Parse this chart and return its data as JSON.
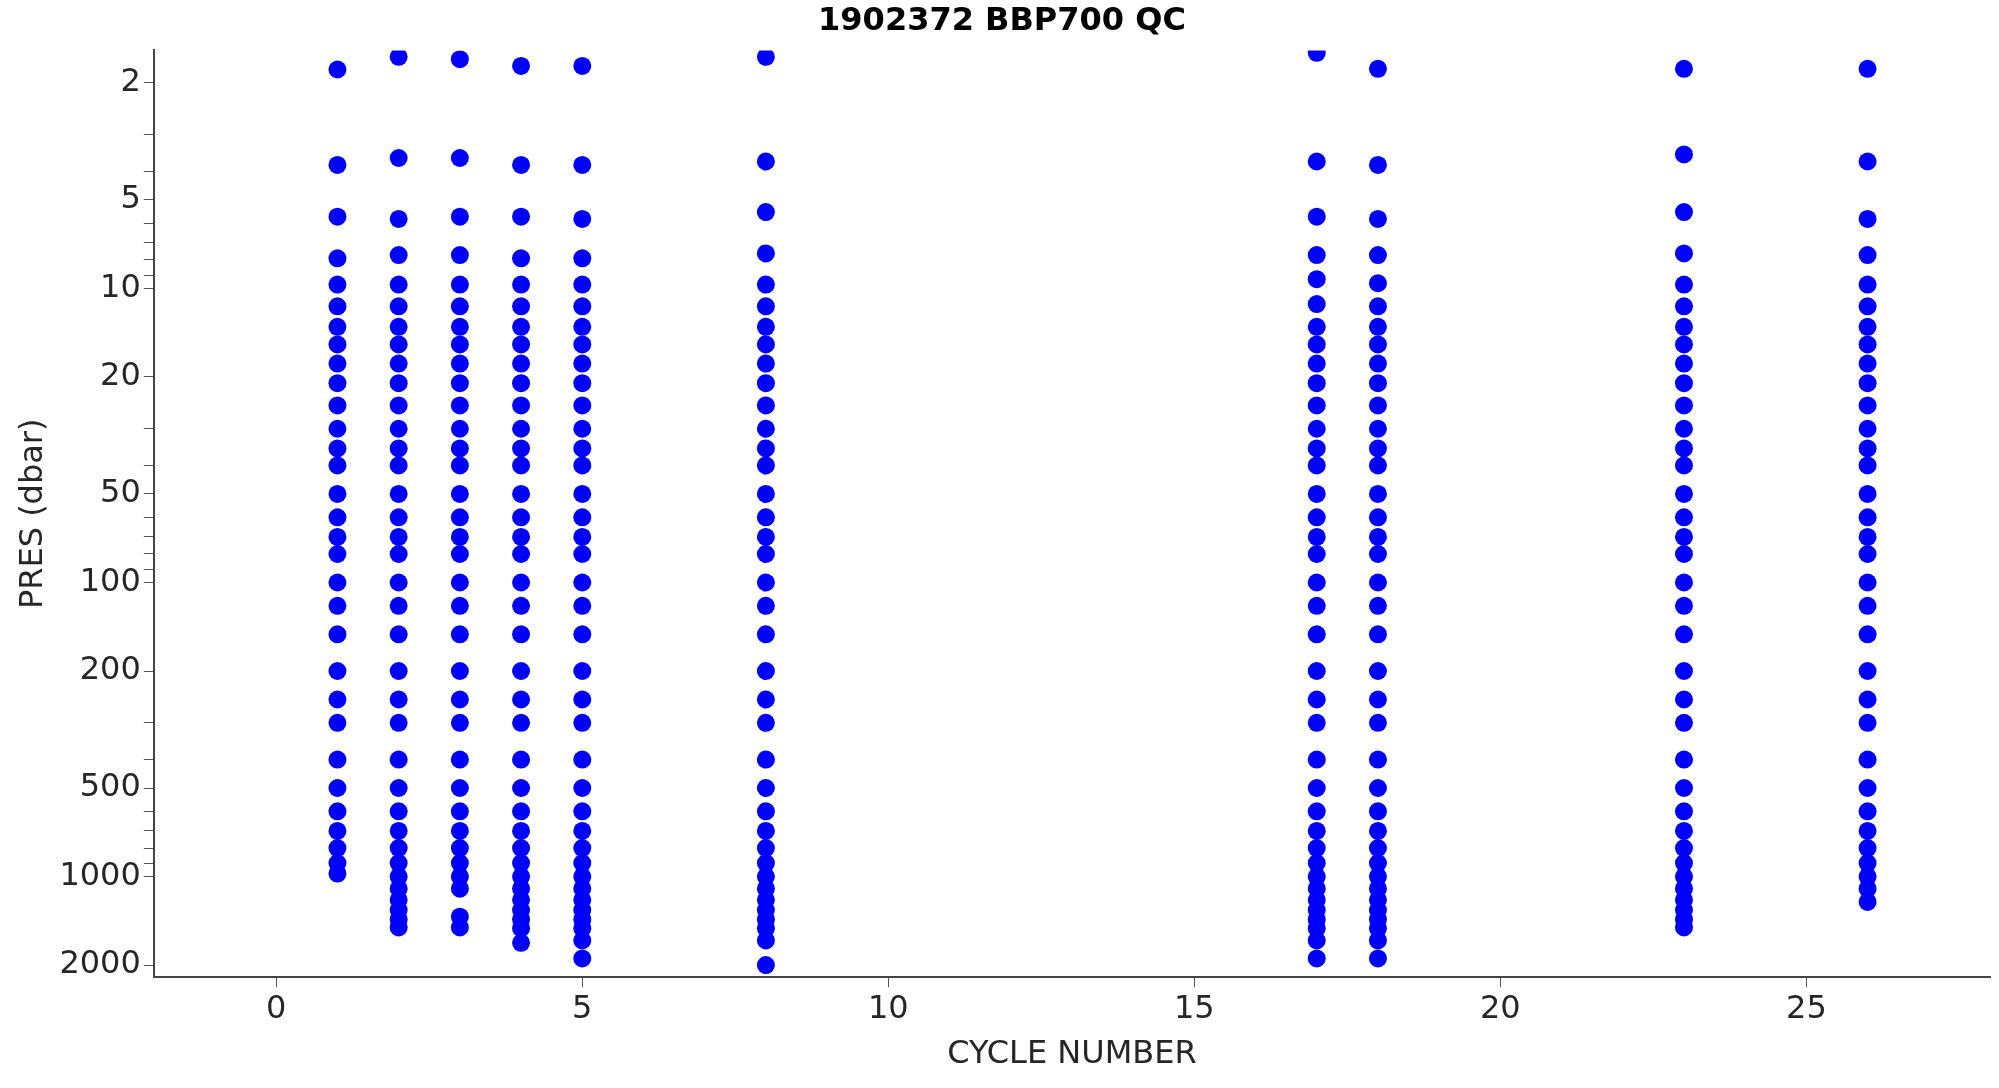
{
  "chart_data": {
    "type": "scatter",
    "title": "1902372 BBP700 QC",
    "xlabel": "CYCLE NUMBER",
    "ylabel": "PRES (dbar)",
    "log": "y",
    "grid": false,
    "marker": "circle",
    "xlim": [
      -2,
      28
    ],
    "xticks": [
      0,
      5,
      10,
      15,
      20,
      25
    ],
    "ylim": [
      2200,
      1.55
    ],
    "yticks": [
      2,
      {
        "value": 3,
        "label": null
      },
      {
        "value": 4,
        "label": null
      },
      5,
      {
        "value": 6,
        "label": null
      },
      {
        "value": 7,
        "label": null
      },
      {
        "value": 8,
        "label": null
      },
      {
        "value": 9,
        "label": null
      },
      10,
      20,
      {
        "value": 30,
        "label": null
      },
      {
        "value": 40,
        "label": null
      },
      50,
      {
        "value": 60,
        "label": null
      },
      {
        "value": 70,
        "label": null
      },
      {
        "value": 80,
        "label": null
      },
      {
        "value": 90,
        "label": null
      },
      100,
      200,
      {
        "value": 300,
        "label": null
      },
      {
        "value": 400,
        "label": null
      },
      500,
      {
        "value": 600,
        "label": null
      },
      {
        "value": 700,
        "label": null
      },
      {
        "value": 800,
        "label": null
      },
      {
        "value": 900,
        "label": null
      },
      1000,
      2000
    ],
    "series": [
      {
        "color": "#0000ff",
        "x": [
          1,
          1,
          1,
          1,
          1,
          1,
          1,
          1,
          1,
          1,
          1,
          1,
          1,
          1,
          1,
          1,
          1,
          1,
          1,
          1,
          1,
          1,
          1,
          1,
          1,
          1,
          1,
          1,
          1,
          1,
          1
        ],
        "values": [
          1.8,
          3.8,
          5.7,
          7.9,
          9.7,
          11.5,
          13.5,
          15.5,
          18,
          21,
          25,
          30,
          35,
          40,
          50,
          60,
          70,
          80,
          100,
          120,
          150,
          200,
          250,
          300,
          400,
          500,
          600,
          700,
          800,
          900,
          977
        ]
      },
      {
        "color": "#0000ff",
        "x": [
          2,
          2,
          2,
          2,
          2,
          2,
          2,
          2,
          2,
          2,
          2,
          2,
          2,
          2,
          2,
          2,
          2,
          2,
          2,
          2,
          2,
          2,
          2,
          2,
          2,
          2,
          2,
          2,
          2,
          2,
          2,
          2,
          2,
          2,
          2,
          2
        ],
        "values": [
          1.63,
          3.6,
          5.8,
          7.7,
          9.7,
          11.5,
          13.5,
          15.5,
          18,
          21,
          25,
          30,
          35,
          40,
          50,
          60,
          70,
          80,
          100,
          120,
          150,
          200,
          250,
          300,
          400,
          500,
          600,
          700,
          800,
          900,
          1000,
          1100,
          1200,
          1300,
          1400,
          1490
        ]
      },
      {
        "color": "#0000ff",
        "x": [
          3,
          3,
          3,
          3,
          3,
          3,
          3,
          3,
          3,
          3,
          3,
          3,
          3,
          3,
          3,
          3,
          3,
          3,
          3,
          3,
          3,
          3,
          3,
          3,
          3,
          3,
          3,
          3,
          3,
          3,
          3,
          3,
          3,
          3
        ],
        "values": [
          1.66,
          3.6,
          5.7,
          7.7,
          9.7,
          11.5,
          13.5,
          15.5,
          18,
          21,
          25,
          30,
          35,
          40,
          50,
          60,
          70,
          80,
          100,
          120,
          150,
          200,
          250,
          300,
          400,
          500,
          600,
          700,
          800,
          900,
          1000,
          1100,
          1370,
          1490
        ]
      },
      {
        "color": "#0000ff",
        "x": [
          4,
          4,
          4,
          4,
          4,
          4,
          4,
          4,
          4,
          4,
          4,
          4,
          4,
          4,
          4,
          4,
          4,
          4,
          4,
          4,
          4,
          4,
          4,
          4,
          4,
          4,
          4,
          4,
          4,
          4,
          4,
          4,
          4,
          4,
          4,
          4,
          4
        ],
        "values": [
          1.75,
          3.8,
          5.7,
          7.9,
          9.7,
          11.5,
          13.5,
          15.5,
          18,
          21,
          25,
          30,
          35,
          40,
          50,
          60,
          70,
          80,
          100,
          120,
          150,
          200,
          250,
          300,
          400,
          500,
          600,
          700,
          800,
          900,
          1000,
          1100,
          1200,
          1300,
          1400,
          1500,
          1680
        ]
      },
      {
        "color": "#0000ff",
        "x": [
          5,
          5,
          5,
          5,
          5,
          5,
          5,
          5,
          5,
          5,
          5,
          5,
          5,
          5,
          5,
          5,
          5,
          5,
          5,
          5,
          5,
          5,
          5,
          5,
          5,
          5,
          5,
          5,
          5,
          5,
          5,
          5,
          5,
          5,
          5,
          5,
          5,
          5
        ],
        "values": [
          1.75,
          3.8,
          5.8,
          7.9,
          9.7,
          11.5,
          13.5,
          15.5,
          18,
          21,
          25,
          30,
          35,
          40,
          50,
          60,
          70,
          80,
          100,
          120,
          150,
          200,
          250,
          300,
          400,
          500,
          600,
          700,
          800,
          900,
          1000,
          1100,
          1200,
          1300,
          1400,
          1500,
          1650,
          1900
        ]
      },
      {
        "color": "#0000ff",
        "x": [
          8,
          8,
          8,
          8,
          8,
          8,
          8,
          8,
          8,
          8,
          8,
          8,
          8,
          8,
          8,
          8,
          8,
          8,
          8,
          8,
          8,
          8,
          8,
          8,
          8,
          8,
          8,
          8,
          8,
          8,
          8,
          8,
          8,
          8,
          8,
          8,
          8,
          8
        ],
        "values": [
          1.63,
          3.7,
          5.5,
          7.6,
          9.7,
          11.5,
          13.5,
          15.5,
          18,
          21,
          25,
          30,
          35,
          40,
          50,
          60,
          70,
          80,
          100,
          120,
          150,
          200,
          250,
          300,
          400,
          500,
          600,
          700,
          800,
          900,
          1000,
          1100,
          1200,
          1300,
          1400,
          1500,
          1650,
          2000
        ]
      },
      {
        "color": "#0000ff",
        "x": [
          17,
          17,
          17,
          17,
          17,
          17,
          17,
          17,
          17,
          17,
          17,
          17,
          17,
          17,
          17,
          17,
          17,
          17,
          17,
          17,
          17,
          17,
          17,
          17,
          17,
          17,
          17,
          17,
          17,
          17,
          17,
          17,
          17,
          17,
          17,
          17,
          17,
          17
        ],
        "values": [
          1.58,
          3.7,
          5.7,
          7.7,
          9.3,
          11.3,
          13.5,
          15.5,
          18,
          21,
          25,
          30,
          35,
          40,
          50,
          60,
          70,
          80,
          100,
          120,
          150,
          200,
          250,
          300,
          400,
          500,
          600,
          700,
          800,
          900,
          1000,
          1100,
          1200,
          1300,
          1400,
          1500,
          1650,
          1900
        ]
      },
      {
        "color": "#0000ff",
        "x": [
          18,
          18,
          18,
          18,
          18,
          18,
          18,
          18,
          18,
          18,
          18,
          18,
          18,
          18,
          18,
          18,
          18,
          18,
          18,
          18,
          18,
          18,
          18,
          18,
          18,
          18,
          18,
          18,
          18,
          18,
          18,
          18,
          18,
          18,
          18,
          18,
          18,
          18
        ],
        "values": [
          1.79,
          3.8,
          5.8,
          7.7,
          9.6,
          11.5,
          13.5,
          15.5,
          18,
          21,
          25,
          30,
          35,
          40,
          50,
          60,
          70,
          80,
          100,
          120,
          150,
          200,
          250,
          300,
          400,
          500,
          600,
          700,
          800,
          900,
          1000,
          1100,
          1200,
          1300,
          1400,
          1500,
          1650,
          1900
        ]
      },
      {
        "color": "#0000ff",
        "x": [
          23,
          23,
          23,
          23,
          23,
          23,
          23,
          23,
          23,
          23,
          23,
          23,
          23,
          23,
          23,
          23,
          23,
          23,
          23,
          23,
          23,
          23,
          23,
          23,
          23,
          23,
          23,
          23,
          23,
          23,
          23,
          23,
          23,
          23,
          23,
          23
        ],
        "values": [
          1.79,
          3.5,
          5.5,
          7.6,
          9.7,
          11.5,
          13.5,
          15.5,
          18,
          21,
          25,
          30,
          35,
          40,
          50,
          60,
          70,
          80,
          100,
          120,
          150,
          200,
          250,
          300,
          400,
          500,
          600,
          700,
          800,
          900,
          1000,
          1100,
          1200,
          1300,
          1400,
          1490
        ]
      },
      {
        "color": "#0000ff",
        "x": [
          26,
          26,
          26,
          26,
          26,
          26,
          26,
          26,
          26,
          26,
          26,
          26,
          26,
          26,
          26,
          26,
          26,
          26,
          26,
          26,
          26,
          26,
          26,
          26,
          26,
          26,
          26,
          26,
          26,
          26,
          26,
          26,
          26
        ],
        "values": [
          1.79,
          3.7,
          5.8,
          7.7,
          9.7,
          11.5,
          13.5,
          15.5,
          18,
          21,
          25,
          30,
          35,
          40,
          50,
          60,
          70,
          80,
          100,
          120,
          150,
          200,
          250,
          300,
          400,
          500,
          600,
          700,
          800,
          900,
          1000,
          1100,
          1220
        ]
      }
    ]
  }
}
